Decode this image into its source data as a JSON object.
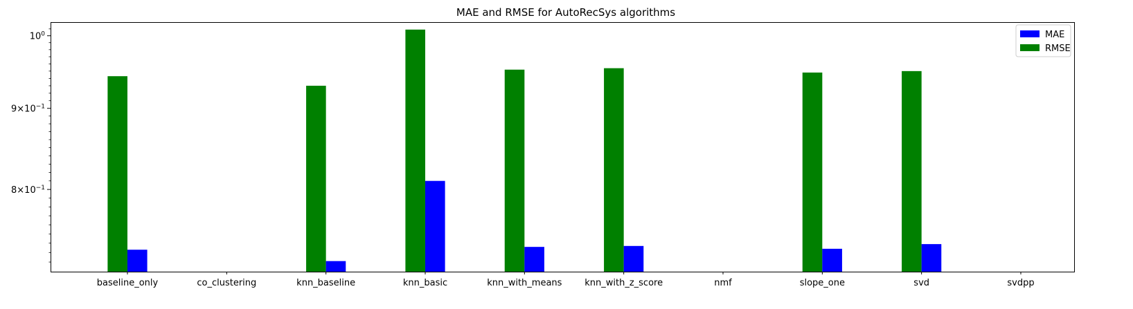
{
  "chart_data": {
    "type": "bar",
    "title": "MAE and RMSE for AutoRecSys algorithms",
    "xlabel": "",
    "ylabel": "",
    "yscale": "log",
    "ylim": [
      0.71,
      1.02
    ],
    "grid": false,
    "legend_position": "top-right",
    "categories": [
      "baseline_only",
      "co_clustering",
      "knn_baseline",
      "knn_basic",
      "knn_with_means",
      "knn_with_z_score",
      "nmf",
      "slope_one",
      "svd",
      "svdpp"
    ],
    "series": [
      {
        "name": "MAE",
        "color": "#0000ff",
        "values": [
          0.733,
          null,
          0.721,
          0.81,
          0.736,
          0.737,
          null,
          0.734,
          0.739,
          null
        ]
      },
      {
        "name": "RMSE",
        "color": "#008000",
        "values": [
          0.943,
          null,
          0.93,
          1.009,
          0.952,
          0.954,
          null,
          0.948,
          0.95,
          null
        ]
      }
    ],
    "yticks": [
      {
        "value": 0.8,
        "mantissa": "8",
        "base": "10",
        "exp": "−1"
      },
      {
        "value": 0.9,
        "mantissa": "9",
        "base": "10",
        "exp": "−1"
      },
      {
        "value": 1.0,
        "mantissa": "",
        "base": "10",
        "exp": "0"
      }
    ]
  }
}
